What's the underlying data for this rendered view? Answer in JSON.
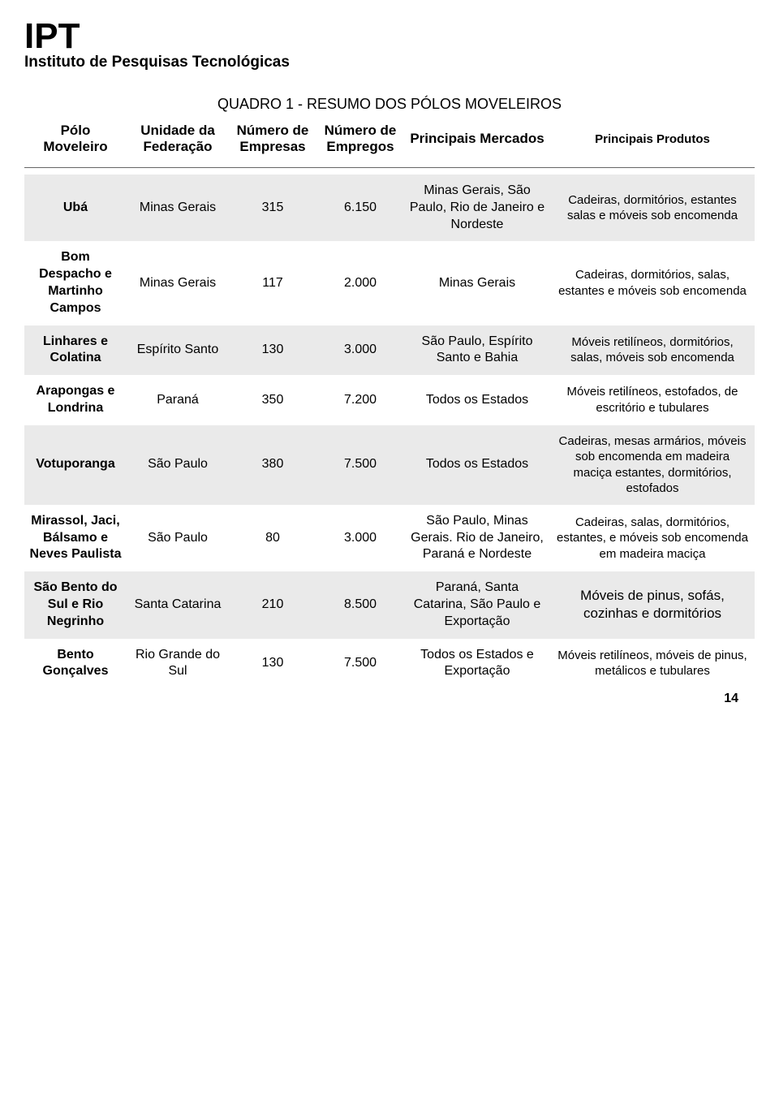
{
  "header": {
    "logo": "IPT",
    "subtitle": "Instituto de Pesquisas Tecnológicas"
  },
  "table": {
    "title": "QUADRO 1 - RESUMO DOS PÓLOS MOVELEIROS",
    "columns": {
      "polo": "Pólo Moveleiro",
      "uf": "Unidade da Federação",
      "empresas": "Número de Empresas",
      "empregos": "Número de Empregos",
      "mercados": "Principais Mercados",
      "produtos": "Principais Produtos"
    },
    "rows": [
      {
        "polo": "Ubá",
        "uf": "Minas Gerais",
        "empresas": "315",
        "empregos": "6.150",
        "mercados": "Minas Gerais, São Paulo, Rio de Janeiro e Nordeste",
        "produtos": "Cadeiras, dormitórios, estantes salas e móveis sob encomenda"
      },
      {
        "polo": "Bom Despacho e Martinho Campos",
        "uf": "Minas Gerais",
        "empresas": "117",
        "empregos": "2.000",
        "mercados": "Minas Gerais",
        "produtos": "Cadeiras, dormitórios, salas, estantes e móveis sob encomenda"
      },
      {
        "polo": "Linhares e Colatina",
        "uf": "Espírito Santo",
        "empresas": "130",
        "empregos": "3.000",
        "mercados": "São Paulo, Espírito Santo e Bahia",
        "produtos": "Móveis retilíneos, dormitórios, salas, móveis sob encomenda"
      },
      {
        "polo": "Arapongas e Londrina",
        "uf": "Paraná",
        "empresas": "350",
        "empregos": "7.200",
        "mercados": "Todos os Estados",
        "produtos": "Móveis retilíneos, estofados, de escritório e tubulares"
      },
      {
        "polo": "Votuporanga",
        "uf": "São Paulo",
        "empresas": "380",
        "empregos": "7.500",
        "mercados": "Todos os Estados",
        "produtos": "Cadeiras, mesas armários, móveis sob encomenda em madeira maciça estantes, dormitórios, estofados"
      },
      {
        "polo": "Mirassol, Jaci, Bálsamo e Neves Paulista",
        "uf": "São Paulo",
        "empresas": "80",
        "empregos": "3.000",
        "mercados": "São Paulo, Minas Gerais. Rio de Janeiro, Paraná e Nordeste",
        "produtos": "Cadeiras, salas, dormitórios, estantes, e móveis sob encomenda em madeira maciça"
      },
      {
        "polo": "São Bento do Sul e Rio Negrinho",
        "uf": "Santa Catarina",
        "empresas": "210",
        "empregos": "8.500",
        "mercados": "Paraná, Santa Catarina, São Paulo e Exportação",
        "produtos": "Móveis de pinus, sofás, cozinhas e dormitórios"
      },
      {
        "polo": "Bento Gonçalves",
        "uf": "Rio Grande do Sul",
        "empresas": "130",
        "empregos": "7.500",
        "mercados": "Todos os Estados e Exportação",
        "produtos": "Móveis retilíneos, móveis de pinus, metálicos e tubulares"
      }
    ]
  },
  "page_number": "14",
  "styles": {
    "row_bg_colors": [
      "#eaeaea",
      "#ffffff"
    ],
    "text_color": "#000000",
    "background_color": "#ffffff",
    "header_fontsize": 17,
    "cell_fontsize": 16,
    "prod_fontsize": 15,
    "logo_fontsize": 44,
    "subtitle_fontsize": 19
  }
}
